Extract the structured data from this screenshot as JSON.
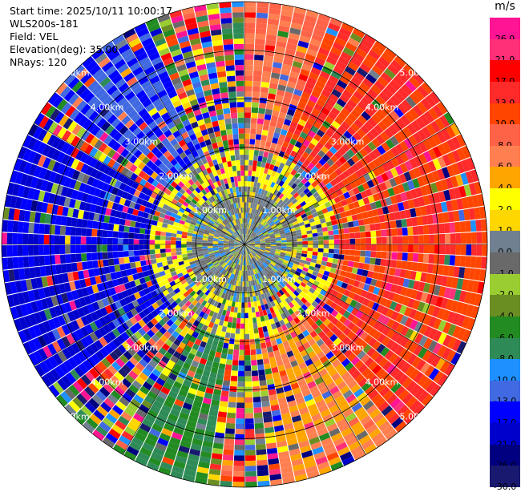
{
  "header": {
    "start_time": "Start time: 2025/10/11 10:00:17",
    "instrument": "WLS200s-181",
    "field": "Field: VEL",
    "elevation": "Elevation(deg): 35.00",
    "nrays": "NRays: 120"
  },
  "colorbar": {
    "unit": "m/s",
    "levels": [
      {
        "label": "26.0",
        "color": "#ff1493"
      },
      {
        "label": "21.0",
        "color": "#ff2f78"
      },
      {
        "label": "17.0",
        "color": "#ff0000"
      },
      {
        "label": "13.0",
        "color": "#ff2a2a"
      },
      {
        "label": "10.0",
        "color": "#ff4500"
      },
      {
        "label": "8.0",
        "color": "#ff6347"
      },
      {
        "label": "6.0",
        "color": "#ff7f50"
      },
      {
        "label": "4.0",
        "color": "#ffa500"
      },
      {
        "label": "2.0",
        "color": "#ffff00"
      },
      {
        "label": "1.0",
        "color": "#ffd700"
      },
      {
        "label": "0.0",
        "color": "#708090"
      },
      {
        "label": "-1.0",
        "color": "#696969"
      },
      {
        "label": "-2.0",
        "color": "#9acd32"
      },
      {
        "label": "-4.0",
        "color": "#6b8e23"
      },
      {
        "label": "-6.0",
        "color": "#228b22"
      },
      {
        "label": "-8.0",
        "color": "#2e8b57"
      },
      {
        "label": "-10.0",
        "color": "#1e90ff"
      },
      {
        "label": "-13.0",
        "color": "#4169e1"
      },
      {
        "label": "-17.0",
        "color": "#0000ff"
      },
      {
        "label": "-21.0",
        "color": "#0000cd"
      },
      {
        "label": "-26.0",
        "color": "#000080"
      },
      {
        "label": "-30.0",
        "color": "#191970"
      }
    ]
  },
  "chart_data": {
    "type": "heatmap",
    "projection": "polar-ppi",
    "field": "VEL",
    "units": "m/s",
    "nrays": 120,
    "max_range_km": 5.0,
    "range_rings_km": [
      1,
      2,
      3,
      4,
      5
    ],
    "ring_labels": [
      "1.00km",
      "2.00km",
      "3.00km",
      "4.00km",
      "5.00km"
    ],
    "value_range": [
      -30,
      30
    ],
    "sectors": [
      {
        "azimuth_deg": [
          20,
          140
        ],
        "dominant_velocity_ms": 13.0
      },
      {
        "azimuth_deg": [
          140,
          170
        ],
        "dominant_velocity_ms": 6.0
      },
      {
        "azimuth_deg": [
          190,
          210
        ],
        "dominant_velocity_ms": -6.0
      },
      {
        "azimuth_deg": [
          230,
          300
        ],
        "dominant_velocity_ms": -17.0
      },
      {
        "azimuth_deg": [
          305,
          335
        ],
        "dominant_velocity_ms": -13.0
      },
      {
        "azimuth_deg": [
          0,
          20
        ],
        "dominant_velocity_ms": 8.0
      }
    ]
  }
}
